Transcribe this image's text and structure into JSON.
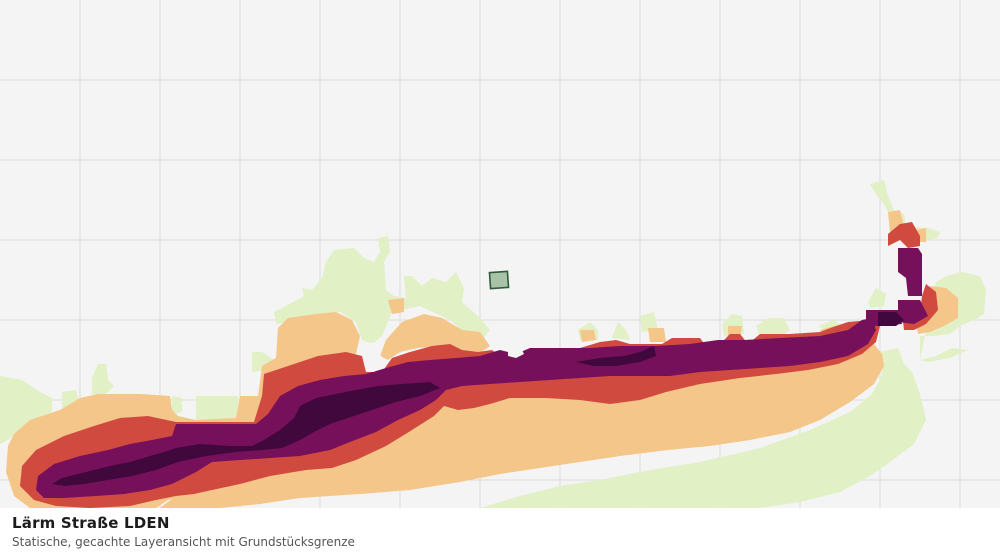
{
  "map": {
    "title": "Lärm Straße LDEN",
    "subtitle": "Statische, gecachte Layeransicht mit Grundstücksgrenze",
    "colors": {
      "background": "#f3f4f3",
      "grid": "#dcdddc",
      "band_lowest": "#e2f0c6",
      "band_low": "#f4c68a",
      "band_mid": "#d04a40",
      "band_high": "#76105a",
      "band_highest": "#40083d",
      "parcel_fill": "#a9c3a8",
      "parcel_stroke": "#2f5b3b"
    }
  }
}
